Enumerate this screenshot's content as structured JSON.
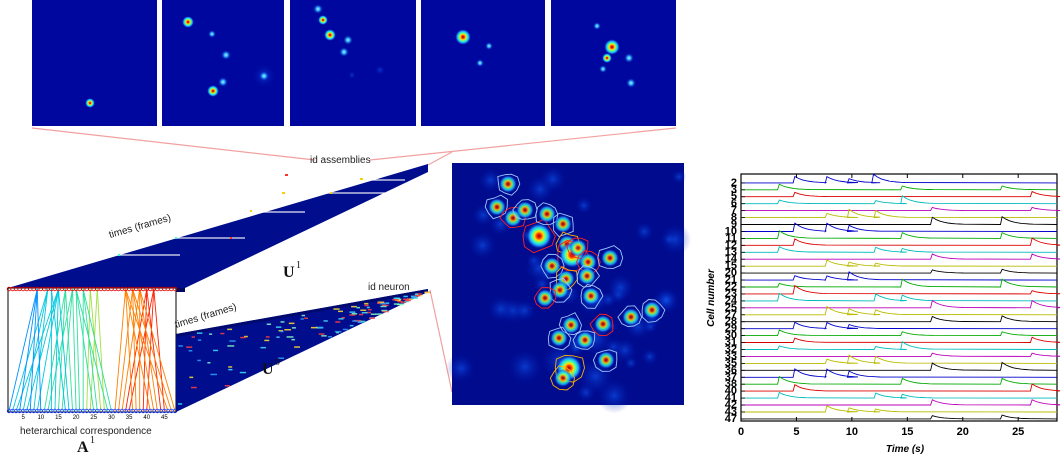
{
  "labels": {
    "id_assemblies": "id assemblies",
    "times_frames_top": "times (frames)",
    "times_frames_bottom": "times (frames)",
    "id_neuron": "id neuron",
    "u1_base": "U",
    "u1_sup": "1",
    "u0_base": "U",
    "u0_sup": "0",
    "a1_base": "A",
    "a1_sup": "1",
    "heterarchical": "heterarchical correspondence"
  },
  "a1_ticks": [
    "5",
    "10",
    "15",
    "20",
    "25",
    "30",
    "35",
    "40",
    "45"
  ],
  "chart_data": {
    "type": "line",
    "xlabel": "Time (s)",
    "ylabel": "Cell number",
    "xlim": [
      0,
      28.5
    ],
    "x_ticks": [
      "0",
      "5",
      "10",
      "15",
      "20",
      "25"
    ],
    "y_tick_labels": [
      "2",
      "3",
      "5",
      "6",
      "7",
      "8",
      "9",
      "10",
      "11",
      "12",
      "13",
      "14",
      "15",
      "20",
      "21",
      "22",
      "23",
      "24",
      "25",
      "27",
      "28",
      "29",
      "30",
      "31",
      "32",
      "33",
      "35",
      "36",
      "37",
      "38",
      "40",
      "41",
      "42",
      "43",
      "47"
    ],
    "trace_colors": [
      "#0000cc",
      "#00aa00",
      "#dd0000",
      "#00bbbb",
      "#bb00bb",
      "#bbbb00",
      "#000000"
    ],
    "grid": false,
    "legend": "none"
  }
}
